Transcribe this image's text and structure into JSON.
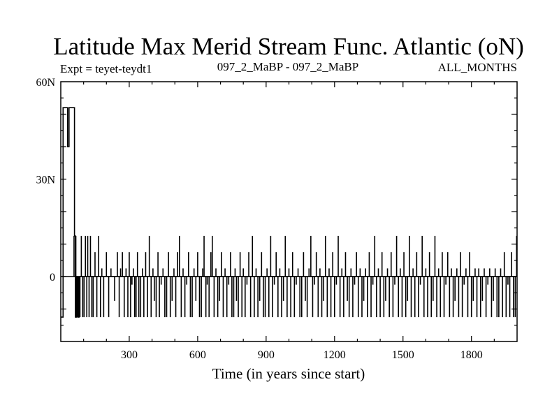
{
  "chart_data": {
    "type": "line",
    "title": "Latitude Max Merid Stream Func. Atlantic (oN)",
    "subtitle_left": "Expt = teyet-teydt1",
    "subtitle_center": "097_2_MaBP - 097_2_MaBP",
    "subtitle_right": "ALL_MONTHS",
    "xlabel": "Time (in years since start)",
    "ylabel": "",
    "xlim": [
      0,
      2000
    ],
    "ylim": [
      -20,
      60
    ],
    "x_ticks": [
      {
        "value": 300,
        "label": "300"
      },
      {
        "value": 600,
        "label": "600"
      },
      {
        "value": 900,
        "label": "900"
      },
      {
        "value": 1200,
        "label": "1200"
      },
      {
        "value": 1500,
        "label": "1500"
      },
      {
        "value": 1800,
        "label": "1800"
      }
    ],
    "y_ticks": [
      {
        "value": 0,
        "label": "0"
      },
      {
        "value": 30,
        "label": "30N"
      },
      {
        "value": 60,
        "label": "60N"
      }
    ],
    "reference_line_y": 0,
    "grid": false,
    "series": [
      {
        "color": "#000000",
        "segments": [
          {
            "x0": 0,
            "x1": 10,
            "y": -12.5
          },
          {
            "x0": 10,
            "x1": 30,
            "y": 52
          },
          {
            "x0": 30,
            "x1": 36,
            "y": 40
          },
          {
            "x0": 36,
            "x1": 60,
            "y": 52
          },
          {
            "x0": 60,
            "x1": 64,
            "y": 12.5
          },
          {
            "x0": 64,
            "x1": 68,
            "y": -12.5
          },
          {
            "x0": 68,
            "x1": 74,
            "y": 0
          },
          {
            "x0": 74,
            "x1": 80,
            "y": -12.5
          },
          {
            "x0": 80,
            "x1": 2000,
            "y": 0
          }
        ],
        "spikes": [
          {
            "x": 58,
            "y": 12.5
          },
          {
            "x": 66,
            "y": 12.5
          },
          {
            "x": 72,
            "y": -12.5
          },
          {
            "x": 78,
            "y": -12.5
          },
          {
            "x": 84,
            "y": -12.5
          },
          {
            "x": 90,
            "y": 12.5
          },
          {
            "x": 96,
            "y": -12.5
          },
          {
            "x": 102,
            "y": -12.5
          },
          {
            "x": 108,
            "y": 12.5
          },
          {
            "x": 114,
            "y": -12.5
          },
          {
            "x": 118,
            "y": 12.5
          },
          {
            "x": 124,
            "y": -12.5
          },
          {
            "x": 130,
            "y": 12.5
          },
          {
            "x": 136,
            "y": -12.5
          },
          {
            "x": 142,
            "y": -12.5
          },
          {
            "x": 150,
            "y": 7.5
          },
          {
            "x": 158,
            "y": -12.5
          },
          {
            "x": 166,
            "y": 12.5
          },
          {
            "x": 174,
            "y": -12.5
          },
          {
            "x": 180,
            "y": 2.5
          },
          {
            "x": 188,
            "y": -12.5
          },
          {
            "x": 200,
            "y": 7.5
          },
          {
            "x": 210,
            "y": -12.5
          },
          {
            "x": 220,
            "y": 2.5
          },
          {
            "x": 236,
            "y": -7.5
          },
          {
            "x": 248,
            "y": 7.5
          },
          {
            "x": 256,
            "y": -12.5
          },
          {
            "x": 262,
            "y": 2.5
          },
          {
            "x": 270,
            "y": 7.5
          },
          {
            "x": 278,
            "y": -12.5
          },
          {
            "x": 286,
            "y": 2.5
          },
          {
            "x": 294,
            "y": -12.5
          },
          {
            "x": 300,
            "y": 7.5
          },
          {
            "x": 306,
            "y": -12.5
          },
          {
            "x": 312,
            "y": -2.5
          },
          {
            "x": 318,
            "y": 2.5
          },
          {
            "x": 324,
            "y": -12.5
          },
          {
            "x": 330,
            "y": -12.5
          },
          {
            "x": 336,
            "y": 7.5
          },
          {
            "x": 342,
            "y": -12.5
          },
          {
            "x": 350,
            "y": -12.5
          },
          {
            "x": 358,
            "y": 2.5
          },
          {
            "x": 364,
            "y": -12.5
          },
          {
            "x": 372,
            "y": 7.5
          },
          {
            "x": 380,
            "y": -12.5
          },
          {
            "x": 388,
            "y": 12.5
          },
          {
            "x": 396,
            "y": -12.5
          },
          {
            "x": 404,
            "y": 2.5
          },
          {
            "x": 410,
            "y": -7.5
          },
          {
            "x": 418,
            "y": -12.5
          },
          {
            "x": 426,
            "y": 7.5
          },
          {
            "x": 432,
            "y": -12.5
          },
          {
            "x": 440,
            "y": -2.5
          },
          {
            "x": 448,
            "y": 2.5
          },
          {
            "x": 456,
            "y": -12.5
          },
          {
            "x": 464,
            "y": -12.5
          },
          {
            "x": 472,
            "y": 7.5
          },
          {
            "x": 480,
            "y": -12.5
          },
          {
            "x": 488,
            "y": -7.5
          },
          {
            "x": 496,
            "y": 2.5
          },
          {
            "x": 504,
            "y": -12.5
          },
          {
            "x": 512,
            "y": 7.5
          },
          {
            "x": 520,
            "y": 12.5
          },
          {
            "x": 528,
            "y": -12.5
          },
          {
            "x": 536,
            "y": 2.5
          },
          {
            "x": 544,
            "y": -12.5
          },
          {
            "x": 552,
            "y": -2.5
          },
          {
            "x": 560,
            "y": 7.5
          },
          {
            "x": 568,
            "y": -12.5
          },
          {
            "x": 576,
            "y": -12.5
          },
          {
            "x": 584,
            "y": 2.5
          },
          {
            "x": 592,
            "y": -7.5
          },
          {
            "x": 600,
            "y": 7.5
          },
          {
            "x": 608,
            "y": -12.5
          },
          {
            "x": 616,
            "y": -12.5
          },
          {
            "x": 622,
            "y": 2.5
          },
          {
            "x": 628,
            "y": 12.5
          },
          {
            "x": 636,
            "y": -12.5
          },
          {
            "x": 642,
            "y": -2.5
          },
          {
            "x": 650,
            "y": -12.5
          },
          {
            "x": 658,
            "y": 7.5
          },
          {
            "x": 664,
            "y": 12.5
          },
          {
            "x": 672,
            "y": -12.5
          },
          {
            "x": 680,
            "y": 2.5
          },
          {
            "x": 688,
            "y": -12.5
          },
          {
            "x": 696,
            "y": -7.5
          },
          {
            "x": 704,
            "y": 7.5
          },
          {
            "x": 712,
            "y": -12.5
          },
          {
            "x": 720,
            "y": 2.5
          },
          {
            "x": 728,
            "y": -12.5
          },
          {
            "x": 736,
            "y": -2.5
          },
          {
            "x": 744,
            "y": 7.5
          },
          {
            "x": 750,
            "y": -12.5
          },
          {
            "x": 758,
            "y": -12.5
          },
          {
            "x": 764,
            "y": 2.5
          },
          {
            "x": 770,
            "y": -7.5
          },
          {
            "x": 778,
            "y": -12.5
          },
          {
            "x": 786,
            "y": 7.5
          },
          {
            "x": 794,
            "y": -12.5
          },
          {
            "x": 800,
            "y": 2.5
          },
          {
            "x": 808,
            "y": -12.5
          },
          {
            "x": 816,
            "y": -2.5
          },
          {
            "x": 824,
            "y": 7.5
          },
          {
            "x": 832,
            "y": -12.5
          },
          {
            "x": 840,
            "y": 12.5
          },
          {
            "x": 848,
            "y": -12.5
          },
          {
            "x": 856,
            "y": 2.5
          },
          {
            "x": 864,
            "y": -12.5
          },
          {
            "x": 872,
            "y": -7.5
          },
          {
            "x": 880,
            "y": 7.5
          },
          {
            "x": 888,
            "y": -12.5
          },
          {
            "x": 896,
            "y": -12.5
          },
          {
            "x": 904,
            "y": 2.5
          },
          {
            "x": 912,
            "y": -12.5
          },
          {
            "x": 920,
            "y": 12.5
          },
          {
            "x": 928,
            "y": -12.5
          },
          {
            "x": 936,
            "y": -2.5
          },
          {
            "x": 944,
            "y": 7.5
          },
          {
            "x": 952,
            "y": -12.5
          },
          {
            "x": 960,
            "y": 2.5
          },
          {
            "x": 968,
            "y": -12.5
          },
          {
            "x": 976,
            "y": -7.5
          },
          {
            "x": 984,
            "y": 12.5
          },
          {
            "x": 992,
            "y": -12.5
          },
          {
            "x": 1000,
            "y": 2.5
          },
          {
            "x": 1008,
            "y": -12.5
          },
          {
            "x": 1016,
            "y": 7.5
          },
          {
            "x": 1024,
            "y": -12.5
          },
          {
            "x": 1032,
            "y": -2.5
          },
          {
            "x": 1040,
            "y": 2.5
          },
          {
            "x": 1048,
            "y": -12.5
          },
          {
            "x": 1056,
            "y": -12.5
          },
          {
            "x": 1064,
            "y": 7.5
          },
          {
            "x": 1072,
            "y": -7.5
          },
          {
            "x": 1080,
            "y": -12.5
          },
          {
            "x": 1088,
            "y": 2.5
          },
          {
            "x": 1096,
            "y": 12.5
          },
          {
            "x": 1104,
            "y": -12.5
          },
          {
            "x": 1112,
            "y": -2.5
          },
          {
            "x": 1120,
            "y": 7.5
          },
          {
            "x": 1128,
            "y": -12.5
          },
          {
            "x": 1136,
            "y": 2.5
          },
          {
            "x": 1144,
            "y": -12.5
          },
          {
            "x": 1152,
            "y": -7.5
          },
          {
            "x": 1160,
            "y": 12.5
          },
          {
            "x": 1168,
            "y": -12.5
          },
          {
            "x": 1176,
            "y": 2.5
          },
          {
            "x": 1184,
            "y": -12.5
          },
          {
            "x": 1192,
            "y": 7.5
          },
          {
            "x": 1200,
            "y": -12.5
          },
          {
            "x": 1208,
            "y": -2.5
          },
          {
            "x": 1216,
            "y": 12.5
          },
          {
            "x": 1224,
            "y": -12.5
          },
          {
            "x": 1232,
            "y": 2.5
          },
          {
            "x": 1240,
            "y": -12.5
          },
          {
            "x": 1248,
            "y": 7.5
          },
          {
            "x": 1256,
            "y": -7.5
          },
          {
            "x": 1264,
            "y": -12.5
          },
          {
            "x": 1272,
            "y": 2.5
          },
          {
            "x": 1280,
            "y": -12.5
          },
          {
            "x": 1288,
            "y": -2.5
          },
          {
            "x": 1296,
            "y": 7.5
          },
          {
            "x": 1304,
            "y": -12.5
          },
          {
            "x": 1312,
            "y": 2.5
          },
          {
            "x": 1320,
            "y": -12.5
          },
          {
            "x": 1328,
            "y": -7.5
          },
          {
            "x": 1336,
            "y": 2.5
          },
          {
            "x": 1344,
            "y": -12.5
          },
          {
            "x": 1352,
            "y": 7.5
          },
          {
            "x": 1360,
            "y": -12.5
          },
          {
            "x": 1368,
            "y": -2.5
          },
          {
            "x": 1376,
            "y": 12.5
          },
          {
            "x": 1384,
            "y": -12.5
          },
          {
            "x": 1392,
            "y": 2.5
          },
          {
            "x": 1400,
            "y": -12.5
          },
          {
            "x": 1408,
            "y": 7.5
          },
          {
            "x": 1416,
            "y": -12.5
          },
          {
            "x": 1424,
            "y": -7.5
          },
          {
            "x": 1432,
            "y": 2.5
          },
          {
            "x": 1440,
            "y": -12.5
          },
          {
            "x": 1448,
            "y": 7.5
          },
          {
            "x": 1456,
            "y": -12.5
          },
          {
            "x": 1464,
            "y": -2.5
          },
          {
            "x": 1472,
            "y": 12.5
          },
          {
            "x": 1480,
            "y": -12.5
          },
          {
            "x": 1488,
            "y": 2.5
          },
          {
            "x": 1496,
            "y": -12.5
          },
          {
            "x": 1504,
            "y": 7.5
          },
          {
            "x": 1512,
            "y": -12.5
          },
          {
            "x": 1520,
            "y": -7.5
          },
          {
            "x": 1528,
            "y": 12.5
          },
          {
            "x": 1536,
            "y": -12.5
          },
          {
            "x": 1544,
            "y": 2.5
          },
          {
            "x": 1552,
            "y": -12.5
          },
          {
            "x": 1560,
            "y": 7.5
          },
          {
            "x": 1568,
            "y": -12.5
          },
          {
            "x": 1576,
            "y": -2.5
          },
          {
            "x": 1584,
            "y": 12.5
          },
          {
            "x": 1592,
            "y": -12.5
          },
          {
            "x": 1600,
            "y": 2.5
          },
          {
            "x": 1608,
            "y": -12.5
          },
          {
            "x": 1616,
            "y": 7.5
          },
          {
            "x": 1624,
            "y": -12.5
          },
          {
            "x": 1632,
            "y": -7.5
          },
          {
            "x": 1640,
            "y": 12.5
          },
          {
            "x": 1648,
            "y": -12.5
          },
          {
            "x": 1656,
            "y": 2.5
          },
          {
            "x": 1664,
            "y": -12.5
          },
          {
            "x": 1672,
            "y": 7.5
          },
          {
            "x": 1680,
            "y": -12.5
          },
          {
            "x": 1688,
            "y": -2.5
          },
          {
            "x": 1696,
            "y": 7.5
          },
          {
            "x": 1704,
            "y": -12.5
          },
          {
            "x": 1712,
            "y": 2.5
          },
          {
            "x": 1720,
            "y": -12.5
          },
          {
            "x": 1728,
            "y": -7.5
          },
          {
            "x": 1736,
            "y": 2.5
          },
          {
            "x": 1744,
            "y": -12.5
          },
          {
            "x": 1752,
            "y": 7.5
          },
          {
            "x": 1760,
            "y": -12.5
          },
          {
            "x": 1768,
            "y": -2.5
          },
          {
            "x": 1776,
            "y": 2.5
          },
          {
            "x": 1784,
            "y": -12.5
          },
          {
            "x": 1792,
            "y": 7.5
          },
          {
            "x": 1800,
            "y": -12.5
          },
          {
            "x": 1808,
            "y": -7.5
          },
          {
            "x": 1816,
            "y": 2.5
          },
          {
            "x": 1824,
            "y": -12.5
          },
          {
            "x": 1832,
            "y": 2.5
          },
          {
            "x": 1840,
            "y": -12.5
          },
          {
            "x": 1848,
            "y": -7.5
          },
          {
            "x": 1856,
            "y": 2.5
          },
          {
            "x": 1864,
            "y": -12.5
          },
          {
            "x": 1872,
            "y": -2.5
          },
          {
            "x": 1880,
            "y": 2.5
          },
          {
            "x": 1888,
            "y": -12.5
          },
          {
            "x": 1896,
            "y": -7.5
          },
          {
            "x": 1904,
            "y": 2.5
          },
          {
            "x": 1912,
            "y": -12.5
          },
          {
            "x": 1920,
            "y": -12.5
          },
          {
            "x": 1928,
            "y": 2.5
          },
          {
            "x": 1936,
            "y": -12.5
          },
          {
            "x": 1944,
            "y": 7.5
          },
          {
            "x": 1952,
            "y": -12.5
          },
          {
            "x": 1960,
            "y": -2.5
          },
          {
            "x": 1968,
            "y": -12.5
          },
          {
            "x": 1976,
            "y": 7.5
          },
          {
            "x": 1984,
            "y": -12.5
          },
          {
            "x": 1992,
            "y": -12.5
          },
          {
            "x": 1998,
            "y": 12.5
          }
        ]
      }
    ]
  }
}
